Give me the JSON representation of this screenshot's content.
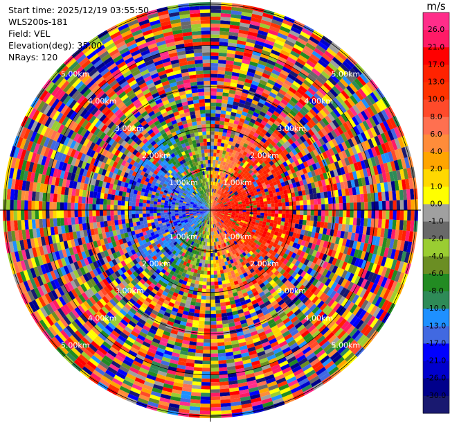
{
  "info": {
    "start_time": "Start time: 2025/12/19 03:55:50",
    "instrument": "WLS200s-181",
    "field": "Field: VEL",
    "elevation": "Elevation(deg): 35.00",
    "nrays": "NRays: 120"
  },
  "colorbar": {
    "unit": "m/s",
    "ticks": [
      "26.0",
      "21.0",
      "17.0",
      "13.0",
      "10.0",
      "8.0",
      "6.0",
      "4.0",
      "2.0",
      "1.0",
      "0.0",
      "-1.0",
      "-2.0",
      "-4.0",
      "-6.0",
      "-8.0",
      "-10.0",
      "-13.0",
      "-17.0",
      "-21.0",
      "-26.0",
      "-30.0"
    ],
    "colors": [
      "#ff2d8a",
      "#ff1a66",
      "#ff0000",
      "#ff2200",
      "#ff3300",
      "#ff4a2a",
      "#ff7050",
      "#ff8c3a",
      "#ffa500",
      "#ffd800",
      "#ffff00",
      "#a0a0a0",
      "#696969",
      "#9acd32",
      "#6b8e23",
      "#228b22",
      "#2e8b57",
      "#1e90ff",
      "#4169e1",
      "#0000ff",
      "#0000cd",
      "#00008b",
      "#191970"
    ]
  },
  "chart_data": {
    "type": "ppi",
    "field": "VEL",
    "nrays": 120,
    "range_rings_km": [
      1.0,
      2.0,
      3.0,
      4.0,
      5.0
    ],
    "ring_labels": [
      "1.00km",
      "2.00km",
      "3.00km",
      "4.00km",
      "5.00km"
    ],
    "max_range_km": 5.05,
    "vmin": -30.0,
    "vmax": 30.0,
    "near_field": {
      "radius_km": 2.3,
      "sectors": [
        {
          "azimuth_deg": 30,
          "value": 3.0
        },
        {
          "azimuth_deg": 90,
          "value": 14.0
        },
        {
          "azimuth_deg": 150,
          "value": 3.0
        },
        {
          "azimuth_deg": 210,
          "value": -3.0
        },
        {
          "azimuth_deg": 270,
          "value": -14.0
        },
        {
          "azimuth_deg": 330,
          "value": -3.0
        }
      ]
    },
    "far_field": "noise"
  }
}
